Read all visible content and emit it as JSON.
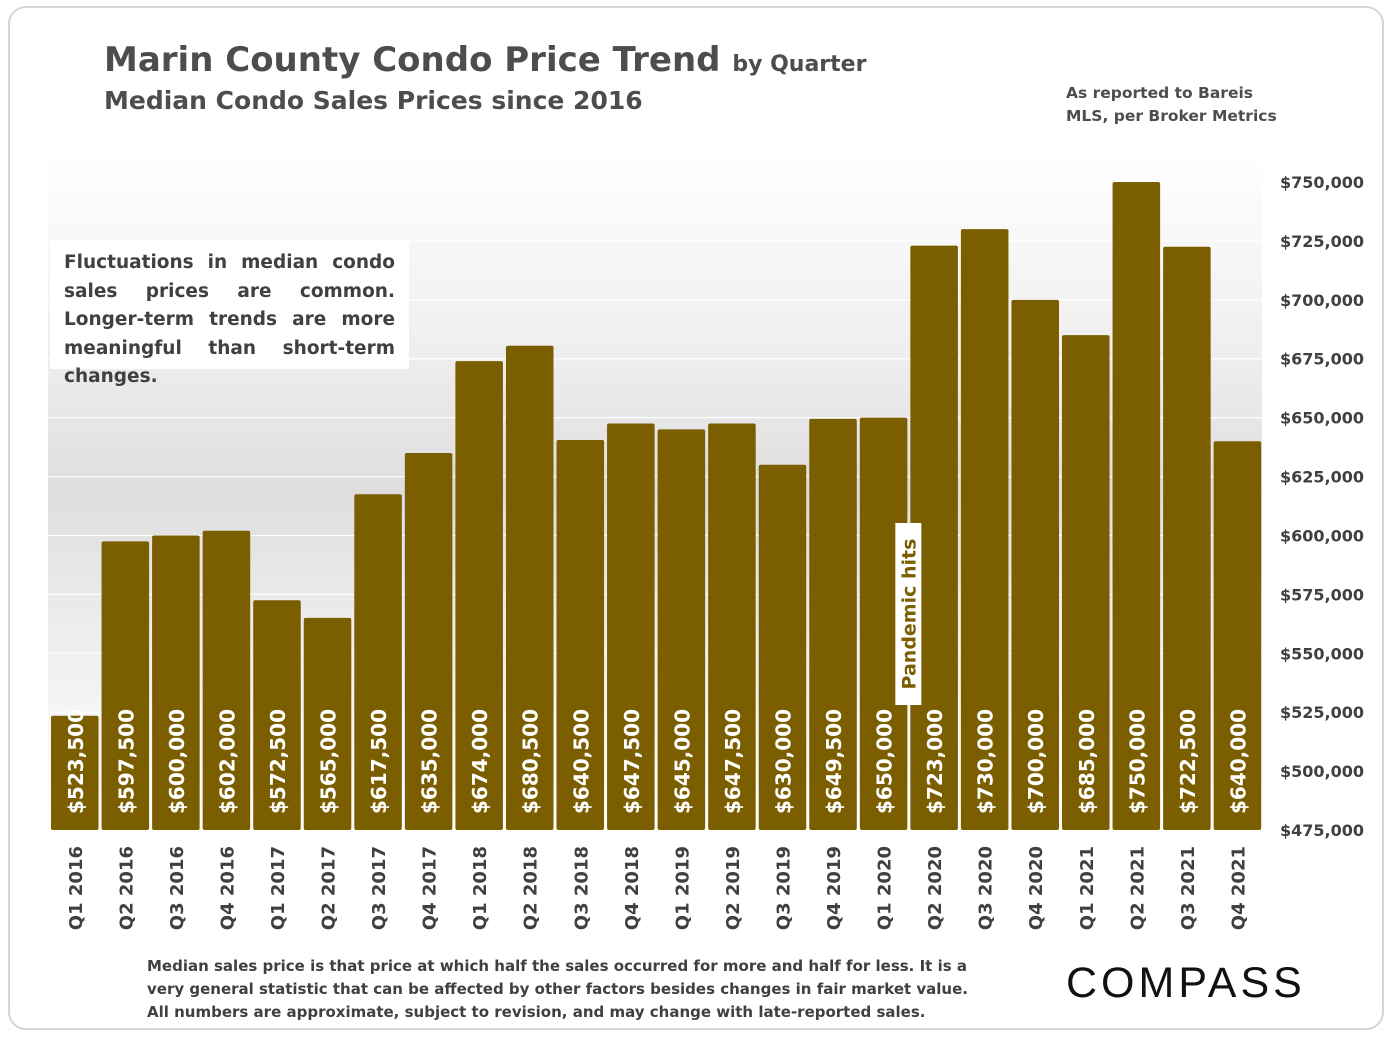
{
  "title": "Marin County Condo Price Trend",
  "title_suffix": "by Quarter",
  "subtitle": "Median Condo Sales Prices since 2016",
  "source_lines": [
    "As reported to Bareis",
    "MLS, per Broker Metrics"
  ],
  "note_box": "Fluctuations in median condo sales prices are common. Longer-term trends are more meaningful than short-term changes.",
  "footnote_lines": [
    "Median sales price is that price at which half the sales occurred for more and half for less. It is a",
    "very general statistic that can be affected by other factors besides changes in fair market value.",
    "All numbers are approximate, subject to revision, and may change with late-reported sales."
  ],
  "logo_text": "COMPASS",
  "colors": {
    "bar": "#7b5e00",
    "bar_label": "#ffffff",
    "axis_text": "#404040",
    "gridline": "#ffffff"
  },
  "chart_data": {
    "type": "bar",
    "categories": [
      "Q1 2016",
      "Q2 2016",
      "Q3 2016",
      "Q4 2016",
      "Q1 2017",
      "Q2 2017",
      "Q3 2017",
      "Q4 2017",
      "Q1 2018",
      "Q2 2018",
      "Q3 2018",
      "Q4 2018",
      "Q1 2019",
      "Q2 2019",
      "Q3 2019",
      "Q4 2019",
      "Q1 2020",
      "Q2 2020",
      "Q3 2020",
      "Q4 2020",
      "Q1 2021",
      "Q2 2021",
      "Q3 2021",
      "Q4 2021"
    ],
    "values": [
      523500,
      597500,
      600000,
      602000,
      572500,
      565000,
      617500,
      635000,
      674000,
      680500,
      640500,
      647500,
      645000,
      647500,
      630000,
      649500,
      650000,
      723000,
      730000,
      700000,
      685000,
      750000,
      722500,
      640000
    ],
    "data_labels": [
      "$523,500",
      "$597,500",
      "$600,000",
      "$602,000",
      "$572,500",
      "$565,000",
      "$617,500",
      "$635,000",
      "$674,000",
      "$680,500",
      "$640,500",
      "$647,500",
      "$645,000",
      "$647,500",
      "$630,000",
      "$649,500",
      "$650,000",
      "$723,000",
      "$730,000",
      "$700,000",
      "$685,000",
      "$750,000",
      "$722,500",
      "$640,000"
    ],
    "ylim": [
      475000,
      750000
    ],
    "y_ticks": [
      475000,
      500000,
      525000,
      550000,
      575000,
      600000,
      625000,
      650000,
      675000,
      700000,
      725000,
      750000
    ],
    "y_tick_labels": [
      "$475,000",
      "$500,000",
      "$525,000",
      "$550,000",
      "$575,000",
      "$600,000",
      "$625,000",
      "$650,000",
      "$675,000",
      "$700,000",
      "$725,000",
      "$750,000"
    ],
    "y_axis_side": "right",
    "grid": true,
    "annotation": {
      "text": "Pandemic hits",
      "category": "Q1 2020"
    }
  }
}
